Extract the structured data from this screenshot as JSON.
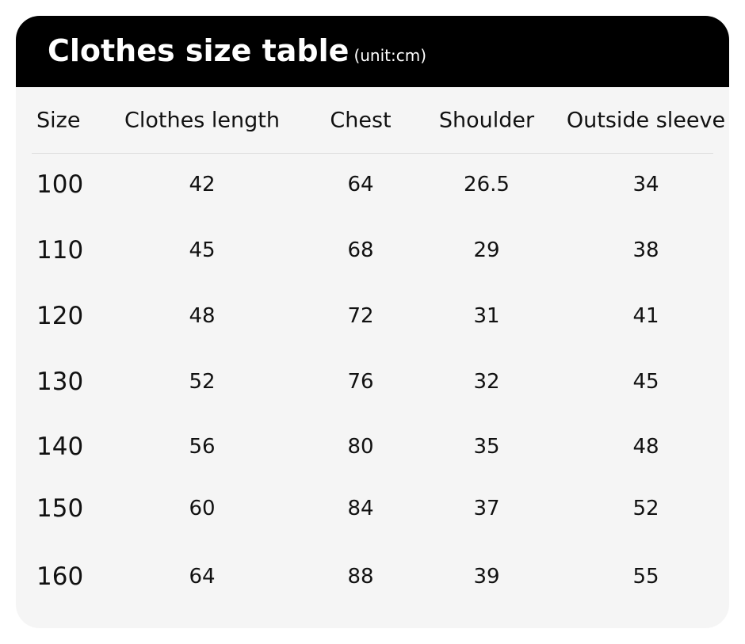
{
  "title": "Clothes size table",
  "unit": "(unit:cm)",
  "headers": [
    "Size",
    "Clothes length",
    "Chest",
    "Shoulder",
    "Outside sleeve"
  ],
  "rows": [
    [
      "100",
      "42",
      "64",
      "26.5",
      "34"
    ],
    [
      "110",
      "45",
      "68",
      "29",
      "38"
    ],
    [
      "120",
      "48",
      "72",
      "31",
      "41"
    ],
    [
      "130",
      "52",
      "76",
      "32",
      "45"
    ],
    [
      "140",
      "56",
      "80",
      "35",
      "48"
    ],
    [
      "150",
      "60",
      "84",
      "37",
      "52"
    ],
    [
      "160",
      "64",
      "88",
      "39",
      "55"
    ]
  ]
}
